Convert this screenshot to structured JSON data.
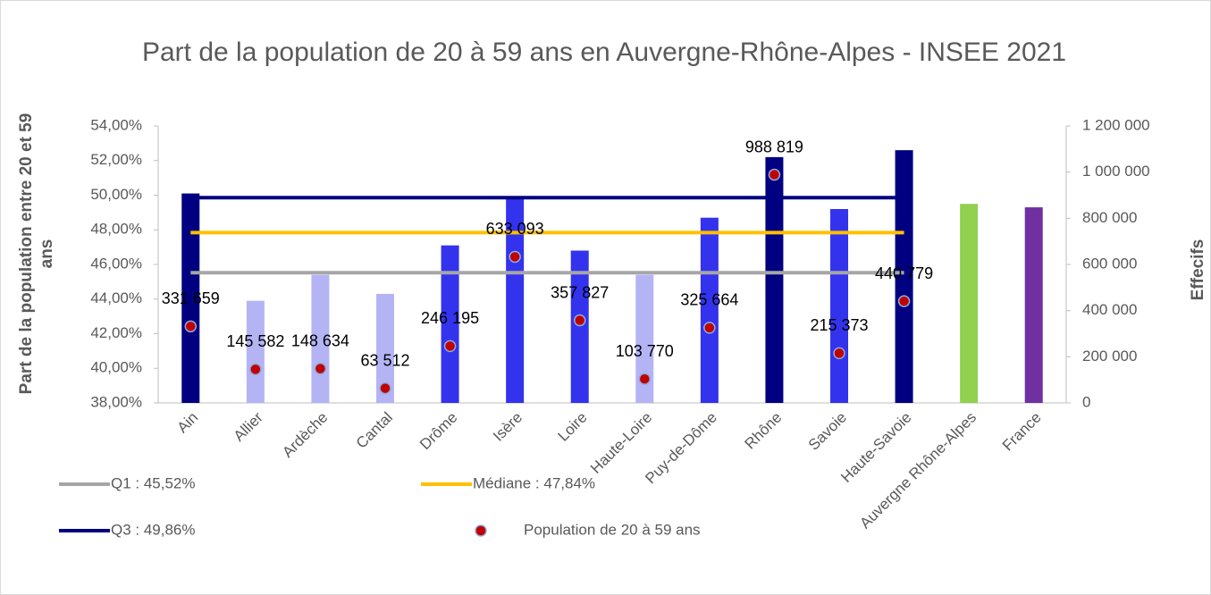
{
  "chart_data": {
    "type": "bar",
    "title": "Part de la population de 20 à 59 ans en Auvergne-Rhône-Alpes - INSEE 2021",
    "y_label": "Part de la population entre 20 et 59 ans",
    "y2_label": "Effecifs",
    "categories": [
      "Ain",
      "Allier",
      "Ardèche",
      "Cantal",
      "Drôme",
      "Isère",
      "Loire",
      "Haute-Loire",
      "Puy-de-Dôme",
      "Rhône",
      "Savoie",
      "Haute-Savoie",
      "Auvergne Rhône-Alpes",
      "France"
    ],
    "series": [
      {
        "name": "Part",
        "type": "bar",
        "colors": [
          "#000080",
          "#b4b4f5",
          "#b4b4f5",
          "#b4b4f5",
          "#3333ee",
          "#3333ee",
          "#3333ee",
          "#b4b4f5",
          "#3333ee",
          "#000080",
          "#3333ee",
          "#000080",
          "#92d050",
          "#7030a0"
        ],
        "values": [
          50.1,
          43.9,
          45.4,
          44.3,
          47.1,
          49.8,
          46.8,
          45.4,
          48.7,
          52.2,
          49.2,
          52.6,
          49.5,
          49.3
        ]
      },
      {
        "name": "Population de 20 à 59 ans",
        "type": "scatter",
        "axis": "y2",
        "color": "#c00000",
        "values": [
          331659,
          145582,
          148634,
          63512,
          246195,
          633093,
          357827,
          103770,
          325664,
          988819,
          215373,
          440779,
          null,
          null
        ],
        "value_labels": [
          "331 659",
          "145 582",
          "148 634",
          "63 512",
          "246 195",
          "633 093",
          "357 827",
          "103 770",
          "325 664",
          "988 819",
          "215 373",
          "440 779",
          null,
          null
        ]
      }
    ],
    "reference_lines": [
      {
        "name": "Q1 : 45,52%",
        "value": 45.52,
        "color": "#a6a6a6"
      },
      {
        "name": "Médiane : 47,84%",
        "value": 47.84,
        "color": "#ffc000"
      },
      {
        "name": "Q3 : 49,86%",
        "value": 49.86,
        "color": "#000080"
      }
    ],
    "ylim": [
      38,
      54
    ],
    "yticks": [
      {
        "value": 38,
        "label": "38,00%"
      },
      {
        "value": 40,
        "label": "40,00%"
      },
      {
        "value": 42,
        "label": "42,00%"
      },
      {
        "value": 44,
        "label": "44,00%"
      },
      {
        "value": 46,
        "label": "46,00%"
      },
      {
        "value": 48,
        "label": "48,00%"
      },
      {
        "value": 50,
        "label": "50,00%"
      },
      {
        "value": 52,
        "label": "52,00%"
      },
      {
        "value": 54,
        "label": "54,00%"
      }
    ],
    "y2lim": [
      0,
      1200000
    ],
    "y2ticks": [
      0,
      {
        "value": 200000,
        "label": "200 000"
      },
      {
        "value": 400000,
        "label": "400 000"
      },
      {
        "value": 600000,
        "label": "600 000"
      },
      {
        "value": 800000,
        "label": "800 000"
      },
      {
        "value": 1000000,
        "label": "1 000 000"
      },
      {
        "value": 1200000,
        "label": "1 200 000"
      }
    ]
  }
}
